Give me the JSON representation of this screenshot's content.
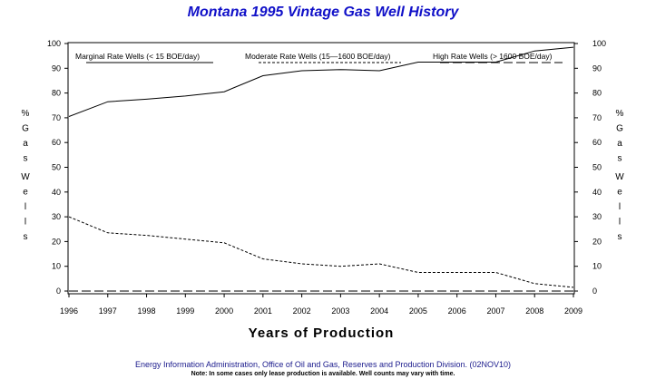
{
  "chart_data": {
    "type": "line",
    "title": "Montana 1995 Vintage Gas Well History",
    "xlabel": "Years of Production",
    "ylabel": "% Gas Wells",
    "categories": [
      "1996",
      "1997",
      "1998",
      "1999",
      "2000",
      "2001",
      "2002",
      "2003",
      "2004",
      "2005",
      "2006",
      "2007",
      "2008",
      "2009"
    ],
    "ylim": [
      0,
      100
    ],
    "yticks": [
      0,
      10,
      20,
      30,
      40,
      50,
      60,
      70,
      80,
      90,
      100
    ],
    "series": [
      {
        "name": "Marginal Rate Wells (< 15 BOE/day)",
        "style": "solid",
        "values": [
          70.5,
          76.5,
          77.5,
          78.8,
          80.5,
          87,
          89,
          89.5,
          89,
          92.5,
          92.5,
          92.5,
          97,
          98.5
        ]
      },
      {
        "name": "Moderate Rate Wells (15-1600 BOE/day)",
        "style": "dashed-short",
        "values": [
          30,
          23.5,
          22.5,
          21,
          19.5,
          13,
          11,
          10,
          11,
          7.5,
          7.5,
          7.5,
          3,
          1.5
        ]
      },
      {
        "name": "High Rate Wells (> 1600 BOE/day)",
        "style": "dashed-long",
        "values": [
          0,
          0,
          0,
          0,
          0,
          0,
          0,
          0,
          0,
          0,
          0,
          0,
          0,
          0
        ]
      }
    ],
    "legend_labels": {
      "marginal": "Marginal Rate Wells (<  15 BOE/day)",
      "moderate": "Moderate Rate Wells (15—1600 BOE/day)",
      "high": "High Rate Wells (> 1600 BOE/day)"
    },
    "legend_placement": "top-inside",
    "grid": false,
    "colors": {
      "title": "#1010c8",
      "footer": "#1a1a8c",
      "lines": "#000000"
    }
  },
  "footer": {
    "source": "Energy Information Administration, Office of Oil and Gas, Reserves and Production Division. (02NOV10)",
    "note": "Note: In some cases only lease production is available. Well counts may vary with time."
  }
}
